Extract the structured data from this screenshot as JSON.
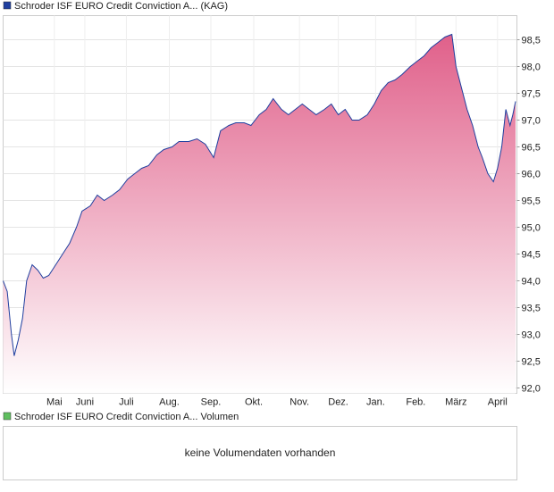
{
  "chart_data": {
    "type": "area",
    "series": [
      {
        "name": "Schroder ISF EURO Credit Conviction A... (KAG)",
        "color": "#1f3f9f",
        "x": [
          0,
          3,
          6,
          8,
          11,
          14,
          17,
          21,
          25,
          29,
          33,
          38,
          43,
          48,
          53,
          57,
          63,
          68,
          73,
          79,
          84,
          90,
          95,
          100,
          105,
          111,
          116,
          122,
          127,
          134,
          140,
          146,
          152,
          157,
          163,
          168,
          174,
          179,
          185,
          190,
          195,
          201,
          206,
          211,
          216,
          221,
          226,
          232,
          237,
          242,
          247,
          252,
          257,
          263,
          268,
          273,
          278,
          283,
          288,
          294,
          299,
          304,
          309,
          314,
          319,
          324,
          327,
          331,
          335,
          339,
          343,
          346,
          350,
          354,
          357,
          360,
          363,
          366,
          368,
          370
        ],
        "values": [
          94.0,
          93.8,
          93.0,
          92.6,
          92.9,
          93.3,
          94.0,
          94.3,
          94.2,
          94.05,
          94.1,
          94.3,
          94.5,
          94.7,
          95.0,
          95.3,
          95.4,
          95.6,
          95.5,
          95.6,
          95.7,
          95.9,
          96.0,
          96.1,
          96.15,
          96.35,
          96.45,
          96.5,
          96.6,
          96.6,
          96.65,
          96.55,
          96.3,
          96.8,
          96.9,
          96.95,
          96.95,
          96.9,
          97.1,
          97.2,
          97.4,
          97.2,
          97.1,
          97.2,
          97.3,
          97.2,
          97.1,
          97.2,
          97.3,
          97.1,
          97.2,
          97.0,
          97.0,
          97.1,
          97.3,
          97.55,
          97.7,
          97.75,
          97.85,
          98.0,
          98.1,
          98.2,
          98.35,
          98.45,
          98.55,
          98.6,
          98.0,
          97.6,
          97.2,
          96.9,
          96.5,
          96.3,
          96.0,
          95.85,
          96.1,
          96.5,
          97.2,
          96.9,
          97.1,
          97.35
        ]
      }
    ],
    "fill_top": "#e0608a",
    "fill_bottom": "#ffffff",
    "xlim": [
      0,
      371
    ],
    "xticks": [
      {
        "value": 37,
        "label": "Mai"
      },
      {
        "value": 59,
        "label": "Juni"
      },
      {
        "value": 89,
        "label": "Juli"
      },
      {
        "value": 120,
        "label": "Aug."
      },
      {
        "value": 150,
        "label": "Sep."
      },
      {
        "value": 181,
        "label": "Okt."
      },
      {
        "value": 214,
        "label": "Nov."
      },
      {
        "value": 242,
        "label": "Dez."
      },
      {
        "value": 269,
        "label": "Jan."
      },
      {
        "value": 298,
        "label": "Feb."
      },
      {
        "value": 327,
        "label": "März"
      },
      {
        "value": 357,
        "label": "April"
      }
    ],
    "ylim": [
      91.9,
      98.95
    ],
    "yticks": [
      {
        "value": 92.0,
        "label": "92,0"
      },
      {
        "value": 92.5,
        "label": "92,5"
      },
      {
        "value": 93.0,
        "label": "93,0"
      },
      {
        "value": 93.5,
        "label": "93,5"
      },
      {
        "value": 94.0,
        "label": "94,0"
      },
      {
        "value": 94.5,
        "label": "94,5"
      },
      {
        "value": 95.0,
        "label": "95,0"
      },
      {
        "value": 95.5,
        "label": "95,5"
      },
      {
        "value": 96.0,
        "label": "96,0"
      },
      {
        "value": 96.5,
        "label": "96,5"
      },
      {
        "value": 97.0,
        "label": "97,0"
      },
      {
        "value": 97.5,
        "label": "97,5"
      },
      {
        "value": 98.0,
        "label": "98,0"
      },
      {
        "value": 98.5,
        "label": "98,5"
      }
    ],
    "grid": true
  },
  "volume_panel": {
    "legend": "Schroder ISF EURO Credit Conviction A... Volumen",
    "color": "#5fbf5f",
    "message": "keine Volumendaten vorhanden"
  }
}
